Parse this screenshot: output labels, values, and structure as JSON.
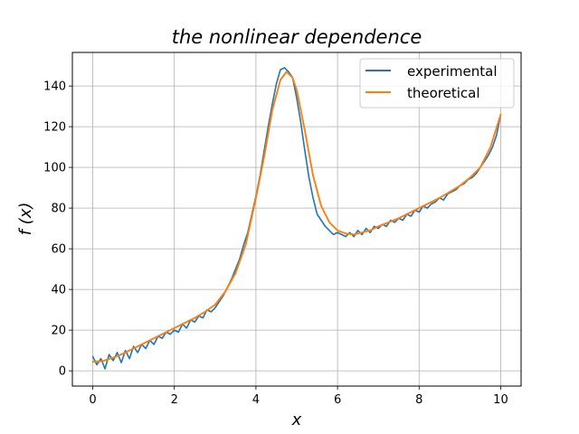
{
  "chart_data": {
    "type": "line",
    "title": "the nonlinear dependence",
    "xlabel": "x",
    "ylabel": "f (x)",
    "xlim": [
      -0.5,
      10.5
    ],
    "ylim": [
      -7.5,
      156.5
    ],
    "xticks": [
      0,
      2,
      4,
      6,
      8,
      10
    ],
    "yticks": [
      0,
      20,
      40,
      60,
      80,
      100,
      120,
      140
    ],
    "grid": true,
    "legend_position": "top-right",
    "series": [
      {
        "name": "experimental",
        "color": "#1f77b4",
        "x": [
          0,
          0.1,
          0.2,
          0.3,
          0.4,
          0.5,
          0.6,
          0.7,
          0.8,
          0.9,
          1.0,
          1.1,
          1.2,
          1.3,
          1.4,
          1.5,
          1.6,
          1.7,
          1.8,
          1.9,
          2.0,
          2.1,
          2.2,
          2.3,
          2.4,
          2.5,
          2.6,
          2.7,
          2.8,
          2.9,
          3.0,
          3.1,
          3.2,
          3.3,
          3.4,
          3.5,
          3.6,
          3.7,
          3.8,
          3.9,
          4.0,
          4.1,
          4.2,
          4.3,
          4.4,
          4.5,
          4.6,
          4.7,
          4.8,
          4.9,
          5.0,
          5.1,
          5.2,
          5.3,
          5.4,
          5.5,
          5.6,
          5.7,
          5.8,
          5.9,
          6.0,
          6.1,
          6.2,
          6.3,
          6.4,
          6.5,
          6.6,
          6.7,
          6.8,
          6.9,
          7.0,
          7.1,
          7.2,
          7.3,
          7.4,
          7.5,
          7.6,
          7.7,
          7.8,
          7.9,
          8.0,
          8.1,
          8.2,
          8.3,
          8.4,
          8.5,
          8.6,
          8.7,
          8.8,
          8.9,
          9.0,
          9.1,
          9.2,
          9.3,
          9.4,
          9.5,
          9.6,
          9.7,
          9.8,
          9.9,
          10.0
        ],
        "y": [
          7,
          3,
          6,
          1,
          8,
          5,
          9,
          4,
          10,
          6,
          12,
          9,
          13,
          11,
          15,
          13,
          17,
          16,
          19,
          18,
          20,
          19,
          23,
          21,
          25,
          24,
          27,
          26,
          30,
          29,
          31,
          34,
          37,
          41,
          45,
          50,
          55,
          62,
          68,
          77,
          86,
          96,
          108,
          120,
          131,
          141,
          148,
          149,
          147,
          144,
          134,
          122,
          108,
          95,
          85,
          77,
          74,
          71,
          69,
          67,
          68,
          67,
          66,
          68,
          66,
          69,
          67,
          70,
          68,
          71,
          70,
          72,
          71,
          74,
          73,
          75,
          74,
          77,
          76,
          79,
          78,
          81,
          80,
          82,
          83,
          85,
          84,
          87,
          88,
          89,
          91,
          92,
          94,
          95,
          97,
          100,
          103,
          106,
          110,
          116,
          126
        ]
      },
      {
        "name": "theoretical",
        "color": "#ff7f0e",
        "x": [
          0,
          0.25,
          0.5,
          0.75,
          1.0,
          1.25,
          1.5,
          1.75,
          2.0,
          2.25,
          2.5,
          2.75,
          3.0,
          3.25,
          3.5,
          3.75,
          4.0,
          4.2,
          4.4,
          4.6,
          4.75,
          4.9,
          5.0,
          5.2,
          5.4,
          5.6,
          5.8,
          6.0,
          6.2,
          6.4,
          6.6,
          6.8,
          7.0,
          7.25,
          7.5,
          7.75,
          8.0,
          8.25,
          8.5,
          8.75,
          9.0,
          9.25,
          9.5,
          9.75,
          10.0
        ],
        "y": [
          4.5,
          4.8,
          6.5,
          8.5,
          11,
          13.5,
          16,
          18.5,
          21,
          23.5,
          26,
          29,
          32.5,
          39,
          48,
          62,
          85,
          105,
          128,
          143,
          147,
          144,
          138,
          118,
          96,
          81,
          73,
          69,
          67.5,
          67,
          68,
          69,
          71,
          73,
          75,
          77.5,
          80,
          82.5,
          85,
          88,
          91,
          95,
          100,
          110,
          126
        ]
      }
    ]
  }
}
